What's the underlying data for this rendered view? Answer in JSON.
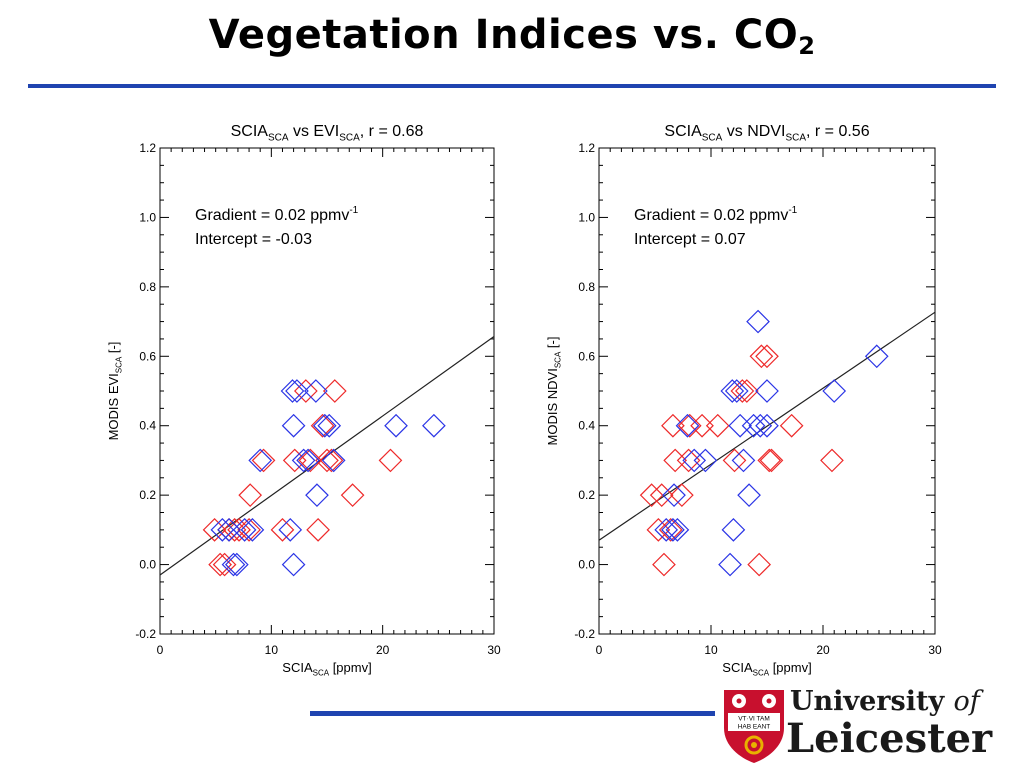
{
  "slide": {
    "title_main": "Vegetation Indices vs. CO",
    "title_sub": "2"
  },
  "logo": {
    "line1_main": "University ",
    "line1_italic": "of",
    "line2": "Leicester",
    "shield_text_1": "VT·VI TAM",
    "shield_text_2": "HAB EANT"
  },
  "colors": {
    "title_rule": "#1f44b0",
    "series_red": "#ee2a2a",
    "series_blue": "#2b35e6",
    "shield": "#c8102e"
  },
  "chart_data": [
    {
      "type": "scatter",
      "title_parts": [
        "SCIA",
        "SCA",
        " vs EVI",
        "SCA",
        ", r = 0.68"
      ],
      "xlabel_parts": [
        "SCIA",
        "SCA",
        " [ppmv]"
      ],
      "ylabel_parts": [
        "MODIS EVI",
        "SCA",
        " [-]"
      ],
      "xlim": [
        0,
        30
      ],
      "ylim": [
        -0.2,
        1.2
      ],
      "xticks": [
        "0",
        "10",
        "20",
        "30"
      ],
      "yticks": [
        "-0.2",
        "0.0",
        "0.2",
        "0.4",
        "0.6",
        "0.8",
        "1.0",
        "1.2"
      ],
      "annotation_line1": "Gradient = 0.02 ppmv",
      "annotation_line1_sup": "-1",
      "annotation_line2": "Intercept = -0.03",
      "regression": {
        "gradient": 0.0229,
        "intercept": -0.03
      },
      "series": [
        {
          "color": "red",
          "points": [
            [
              4.9,
              0.1
            ],
            [
              5.4,
              0.0
            ],
            [
              5.8,
              0.0
            ],
            [
              6.2,
              0.1
            ],
            [
              6.7,
              0.1
            ],
            [
              7.1,
              0.1
            ],
            [
              8.0,
              0.1
            ],
            [
              8.1,
              0.2
            ],
            [
              9.3,
              0.3
            ],
            [
              11.0,
              0.1
            ],
            [
              12.1,
              0.3
            ],
            [
              13.1,
              0.5
            ],
            [
              13.5,
              0.3
            ],
            [
              14.2,
              0.1
            ],
            [
              14.6,
              0.4
            ],
            [
              15.0,
              0.3
            ],
            [
              15.4,
              0.3
            ],
            [
              15.7,
              0.5
            ],
            [
              17.3,
              0.2
            ],
            [
              20.7,
              0.3
            ]
          ]
        },
        {
          "color": "blue",
          "points": [
            [
              5.6,
              0.1
            ],
            [
              6.2,
              0.1
            ],
            [
              6.6,
              0.0
            ],
            [
              6.9,
              0.0
            ],
            [
              7.6,
              0.1
            ],
            [
              8.3,
              0.1
            ],
            [
              9.0,
              0.3
            ],
            [
              11.7,
              0.1
            ],
            [
              11.9,
              0.5
            ],
            [
              12.0,
              0.4
            ],
            [
              12.0,
              0.0
            ],
            [
              12.3,
              0.5
            ],
            [
              12.9,
              0.3
            ],
            [
              13.3,
              0.3
            ],
            [
              14.0,
              0.5
            ],
            [
              14.1,
              0.2
            ],
            [
              14.8,
              0.4
            ],
            [
              15.2,
              0.4
            ],
            [
              15.6,
              0.3
            ],
            [
              21.2,
              0.4
            ],
            [
              24.6,
              0.4
            ]
          ]
        }
      ]
    },
    {
      "type": "scatter",
      "title_parts": [
        "SCIA",
        "SCA",
        " vs NDVI",
        "SCA",
        ", r = 0.56"
      ],
      "xlabel_parts": [
        "SCIA",
        "SCA",
        " [ppmv]"
      ],
      "ylabel_parts": [
        "MODIS NDVI",
        "SCA",
        " [-]"
      ],
      "xlim": [
        0,
        30
      ],
      "ylim": [
        -0.2,
        1.2
      ],
      "xticks": [
        "0",
        "10",
        "20",
        "30"
      ],
      "yticks": [
        "-0.2",
        "0.0",
        "0.2",
        "0.4",
        "0.6",
        "0.8",
        "1.0",
        "1.2"
      ],
      "annotation_line1": "Gradient = 0.02 ppmv",
      "annotation_line1_sup": "-1",
      "annotation_line2": "Intercept = 0.07",
      "regression": {
        "gradient": 0.0219,
        "intercept": 0.07
      },
      "series": [
        {
          "color": "red",
          "points": [
            [
              4.7,
              0.2
            ],
            [
              5.3,
              0.1
            ],
            [
              5.6,
              0.2
            ],
            [
              5.8,
              0.0
            ],
            [
              6.4,
              0.1
            ],
            [
              6.6,
              0.4
            ],
            [
              6.8,
              0.3
            ],
            [
              7.4,
              0.2
            ],
            [
              8.0,
              0.3
            ],
            [
              8.1,
              0.4
            ],
            [
              9.2,
              0.4
            ],
            [
              10.6,
              0.4
            ],
            [
              12.1,
              0.3
            ],
            [
              12.8,
              0.5
            ],
            [
              13.2,
              0.5
            ],
            [
              14.3,
              0.0
            ],
            [
              14.5,
              0.6
            ],
            [
              15.0,
              0.6
            ],
            [
              15.2,
              0.3
            ],
            [
              15.4,
              0.3
            ],
            [
              17.2,
              0.4
            ],
            [
              20.8,
              0.3
            ]
          ]
        },
        {
          "color": "blue",
          "points": [
            [
              6.0,
              0.1
            ],
            [
              6.6,
              0.1
            ],
            [
              6.7,
              0.2
            ],
            [
              7.0,
              0.1
            ],
            [
              7.9,
              0.4
            ],
            [
              8.5,
              0.3
            ],
            [
              9.5,
              0.3
            ],
            [
              11.7,
              0.0
            ],
            [
              11.9,
              0.5
            ],
            [
              12.0,
              0.1
            ],
            [
              12.3,
              0.5
            ],
            [
              12.6,
              0.4
            ],
            [
              12.9,
              0.3
            ],
            [
              13.4,
              0.2
            ],
            [
              13.8,
              0.4
            ],
            [
              14.4,
              0.4
            ],
            [
              14.2,
              0.7
            ],
            [
              15.0,
              0.5
            ],
            [
              15.0,
              0.4
            ],
            [
              21.0,
              0.5
            ],
            [
              24.8,
              0.6
            ]
          ]
        }
      ]
    }
  ]
}
